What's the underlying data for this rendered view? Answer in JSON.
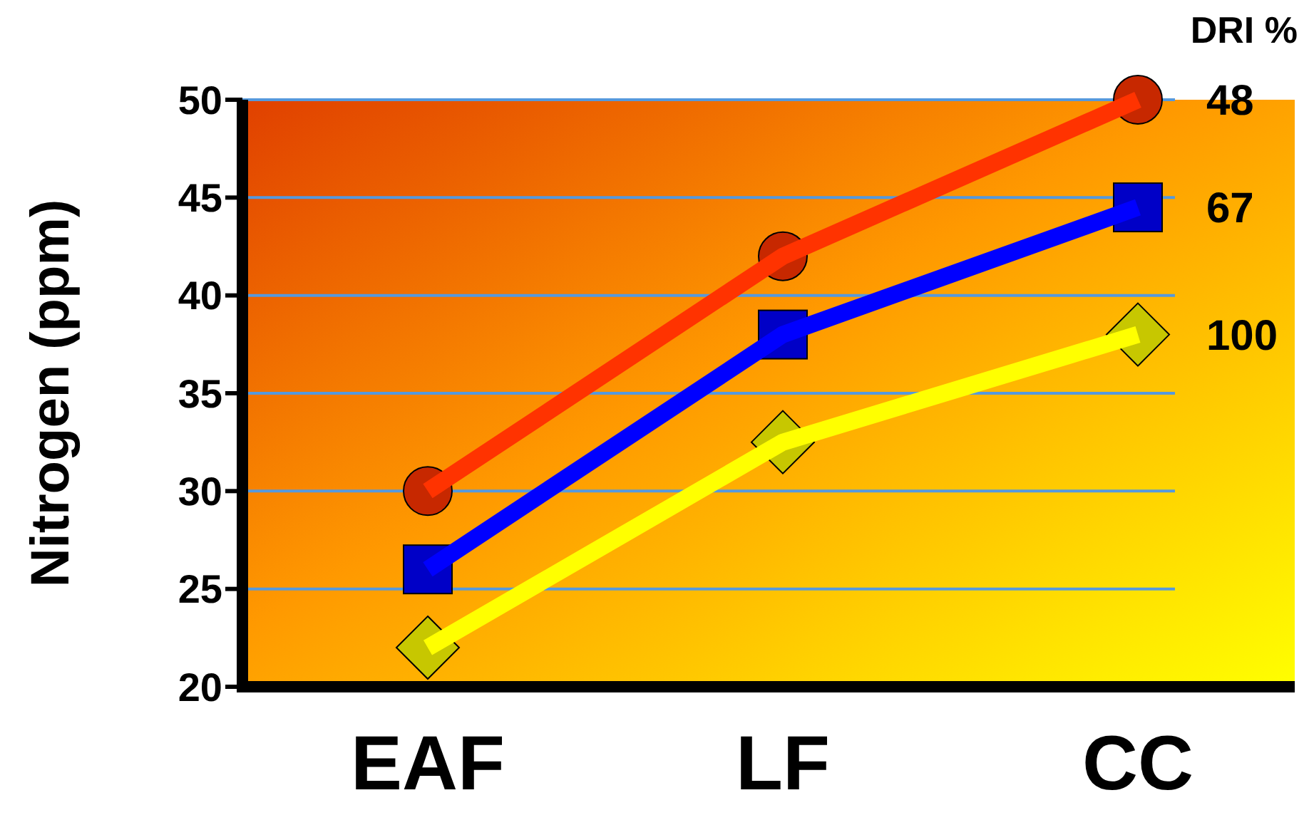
{
  "chart_data": {
    "type": "line",
    "ylabel": "Nitrogen (ppm)",
    "legend_title": "DRI %",
    "categories": [
      "EAF",
      "LF",
      "CC"
    ],
    "series": [
      {
        "name": "48",
        "color": "#ff3300",
        "values": [
          30,
          42,
          50
        ],
        "marker": "circle"
      },
      {
        "name": "67",
        "color": "#0000ff",
        "values": [
          26,
          38,
          44.5
        ],
        "marker": "square"
      },
      {
        "name": "100",
        "color": "#ffff00",
        "values": [
          22,
          32.5,
          38
        ],
        "marker": "diamond"
      }
    ],
    "ylim": [
      20,
      50
    ],
    "yticks": [
      20,
      25,
      30,
      35,
      40,
      45,
      50
    ],
    "grid": "y",
    "legend": "right"
  }
}
